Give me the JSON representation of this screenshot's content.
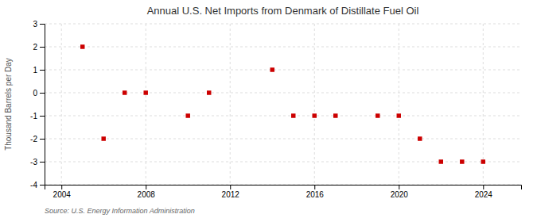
{
  "chart_data": {
    "type": "scatter",
    "title": "Annual U.S. Net Imports from Denmark of Distillate Fuel Oil",
    "ylabel": "Thousand Barrels per Day",
    "source": "Source: U.S. Energy Information Administration",
    "x": [
      2005,
      2006,
      2007,
      2008,
      2010,
      2011,
      2014,
      2015,
      2016,
      2017,
      2019,
      2020,
      2021,
      2022,
      2023,
      2024
    ],
    "values": [
      2,
      -2,
      0,
      0,
      -1,
      0,
      1,
      -1,
      -1,
      -1,
      -1,
      -1,
      -2,
      -3,
      -3,
      -3
    ],
    "color": "#cc0000",
    "marker": "square",
    "xlim": [
      2003.2,
      2025.8
    ],
    "ylim": [
      -4.0,
      3.0
    ],
    "xticks": [
      2004,
      2008,
      2012,
      2016,
      2020,
      2024
    ],
    "yticks": [
      -4,
      -3,
      -2,
      -1,
      0,
      1,
      2,
      3
    ],
    "grid": true
  }
}
